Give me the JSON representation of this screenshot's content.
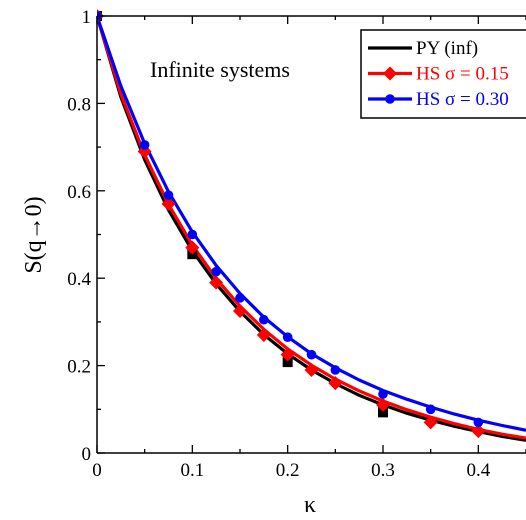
{
  "chart_data": {
    "type": "line",
    "title": "",
    "xlabel": "κ",
    "ylabel": "S(q→0)",
    "xlim": [
      0,
      0.45
    ],
    "ylim": [
      0,
      1
    ],
    "grid": false,
    "legend_position": "top-right",
    "annotation": "Infinite systems",
    "x_ticks": [
      {
        "value": 0,
        "label": "0"
      },
      {
        "value": 0.1,
        "label": "0.1"
      },
      {
        "value": 0.2,
        "label": "0.2"
      },
      {
        "value": 0.3,
        "label": "0.3"
      },
      {
        "value": 0.4,
        "label": "0.4"
      }
    ],
    "y_ticks": [
      {
        "value": 0,
        "label": "0"
      },
      {
        "value": 0.2,
        "label": "0.2"
      },
      {
        "value": 0.4,
        "label": "0.4"
      },
      {
        "value": 0.6,
        "label": "0.6"
      },
      {
        "value": 0.8,
        "label": "0.8"
      },
      {
        "value": 1,
        "label": "1"
      }
    ],
    "series": [
      {
        "name": "PY (inf)",
        "color": "#000000",
        "marker": "square",
        "curve": {
          "x": [
            0,
            0.025,
            0.05,
            0.075,
            0.1,
            0.125,
            0.15,
            0.175,
            0.2,
            0.225,
            0.25,
            0.275,
            0.3,
            0.325,
            0.35,
            0.375,
            0.4,
            0.425,
            0.45
          ],
          "y": [
            1,
            0.815,
            0.671,
            0.556,
            0.463,
            0.387,
            0.324,
            0.271,
            0.227,
            0.19,
            0.159,
            0.132,
            0.11,
            0.091,
            0.075,
            0.061,
            0.049,
            0.038,
            0.029
          ]
        },
        "points": {
          "x": [
            0,
            0.1,
            0.2,
            0.3
          ],
          "y": [
            1,
            0.455,
            0.208,
            0.093
          ]
        }
      },
      {
        "name": "HS σ = 0.15",
        "color": "#ff0000",
        "marker": "diamond",
        "curve": {
          "x": [
            0,
            0.025,
            0.05,
            0.075,
            0.1,
            0.125,
            0.15,
            0.175,
            0.2,
            0.225,
            0.25,
            0.275,
            0.3,
            0.325,
            0.35,
            0.375,
            0.4,
            0.425,
            0.45
          ],
          "y": [
            1,
            0.822,
            0.682,
            0.569,
            0.476,
            0.399,
            0.336,
            0.283,
            0.238,
            0.201,
            0.169,
            0.142,
            0.119,
            0.099,
            0.082,
            0.067,
            0.054,
            0.043,
            0.034
          ]
        },
        "points": {
          "x": [
            0,
            0.05,
            0.075,
            0.1,
            0.125,
            0.15,
            0.175,
            0.2,
            0.225,
            0.25,
            0.3,
            0.35,
            0.4
          ],
          "y": [
            1,
            0.69,
            0.57,
            0.47,
            0.39,
            0.325,
            0.27,
            0.225,
            0.19,
            0.16,
            0.11,
            0.07,
            0.05
          ]
        }
      },
      {
        "name": "HS σ = 0.30",
        "color": "#0000ff",
        "marker": "circle",
        "curve": {
          "x": [
            0,
            0.025,
            0.05,
            0.075,
            0.1,
            0.125,
            0.15,
            0.175,
            0.2,
            0.225,
            0.25,
            0.275,
            0.3,
            0.325,
            0.35,
            0.375,
            0.4,
            0.425,
            0.45
          ],
          "y": [
            1,
            0.84,
            0.708,
            0.598,
            0.506,
            0.429,
            0.365,
            0.311,
            0.266,
            0.227,
            0.195,
            0.167,
            0.143,
            0.123,
            0.105,
            0.089,
            0.075,
            0.063,
            0.052
          ]
        },
        "points": {
          "x": [
            0,
            0.05,
            0.075,
            0.1,
            0.125,
            0.15,
            0.175,
            0.2,
            0.225,
            0.25,
            0.3,
            0.35,
            0.4
          ],
          "y": [
            1,
            0.705,
            0.59,
            0.5,
            0.415,
            0.355,
            0.305,
            0.265,
            0.225,
            0.19,
            0.135,
            0.1,
            0.07
          ]
        }
      }
    ]
  }
}
